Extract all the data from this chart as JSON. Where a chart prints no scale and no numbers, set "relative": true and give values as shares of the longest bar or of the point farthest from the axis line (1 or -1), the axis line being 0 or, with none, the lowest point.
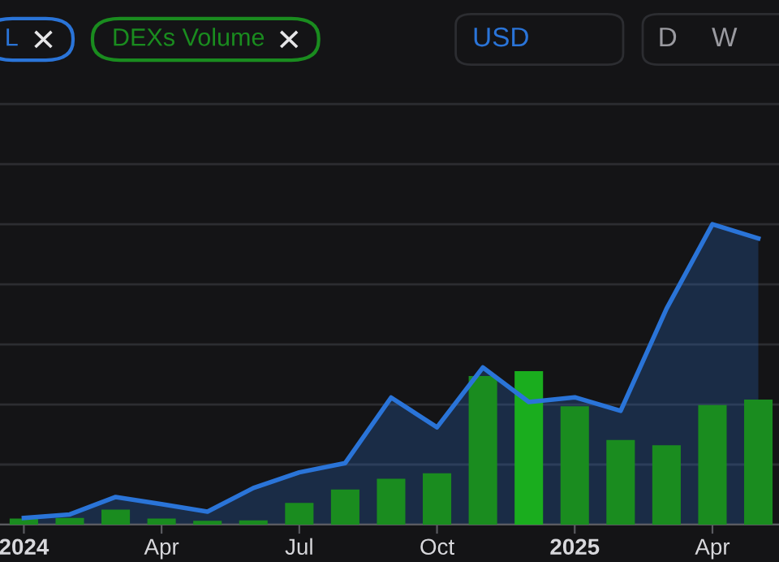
{
  "chart_data": {
    "type": "bar",
    "relative": true,
    "grid": "y",
    "legend": "top left",
    "categories": [
      "2024",
      null,
      null,
      "Apr",
      null,
      null,
      "Jul",
      null,
      null,
      "Oct",
      null,
      null,
      "2025",
      null,
      null,
      "Apr",
      null
    ],
    "series": [
      {
        "name": "L",
        "type": "area",
        "color": "#2a74d8",
        "values": [
          0.022,
          0.034,
          0.092,
          0.068,
          0.043,
          0.122,
          0.174,
          0.205,
          0.423,
          0.324,
          0.523,
          0.408,
          0.424,
          0.379,
          0.719,
          1.0,
          0.953
        ]
      },
      {
        "name": "DEXs Volume",
        "color": "#1a8c1f",
        "colors": [
          "#1a8c1f",
          "#1a8c1f",
          "#1a8c1f",
          "#1a8c1f",
          "#1a8c1f",
          "#1a8c1f",
          "#1a8c1f",
          "#1a8c1f",
          "#1a8c1f",
          "#1a8c1f",
          "#1a8c1f",
          "#1aad1e",
          "#1a8c1f",
          "#1a8c1f",
          "#1a8c1f",
          "#1a8c1f",
          "#1a8c1f"
        ],
        "values": [
          0.02,
          0.022,
          0.05,
          0.02,
          0.013,
          0.014,
          0.072,
          0.117,
          0.153,
          0.171,
          0.495,
          0.511,
          0.394,
          0.282,
          0.264,
          0.398,
          0.416
        ]
      }
    ],
    "annotations": [
      "USD",
      "D",
      "W"
    ]
  }
}
